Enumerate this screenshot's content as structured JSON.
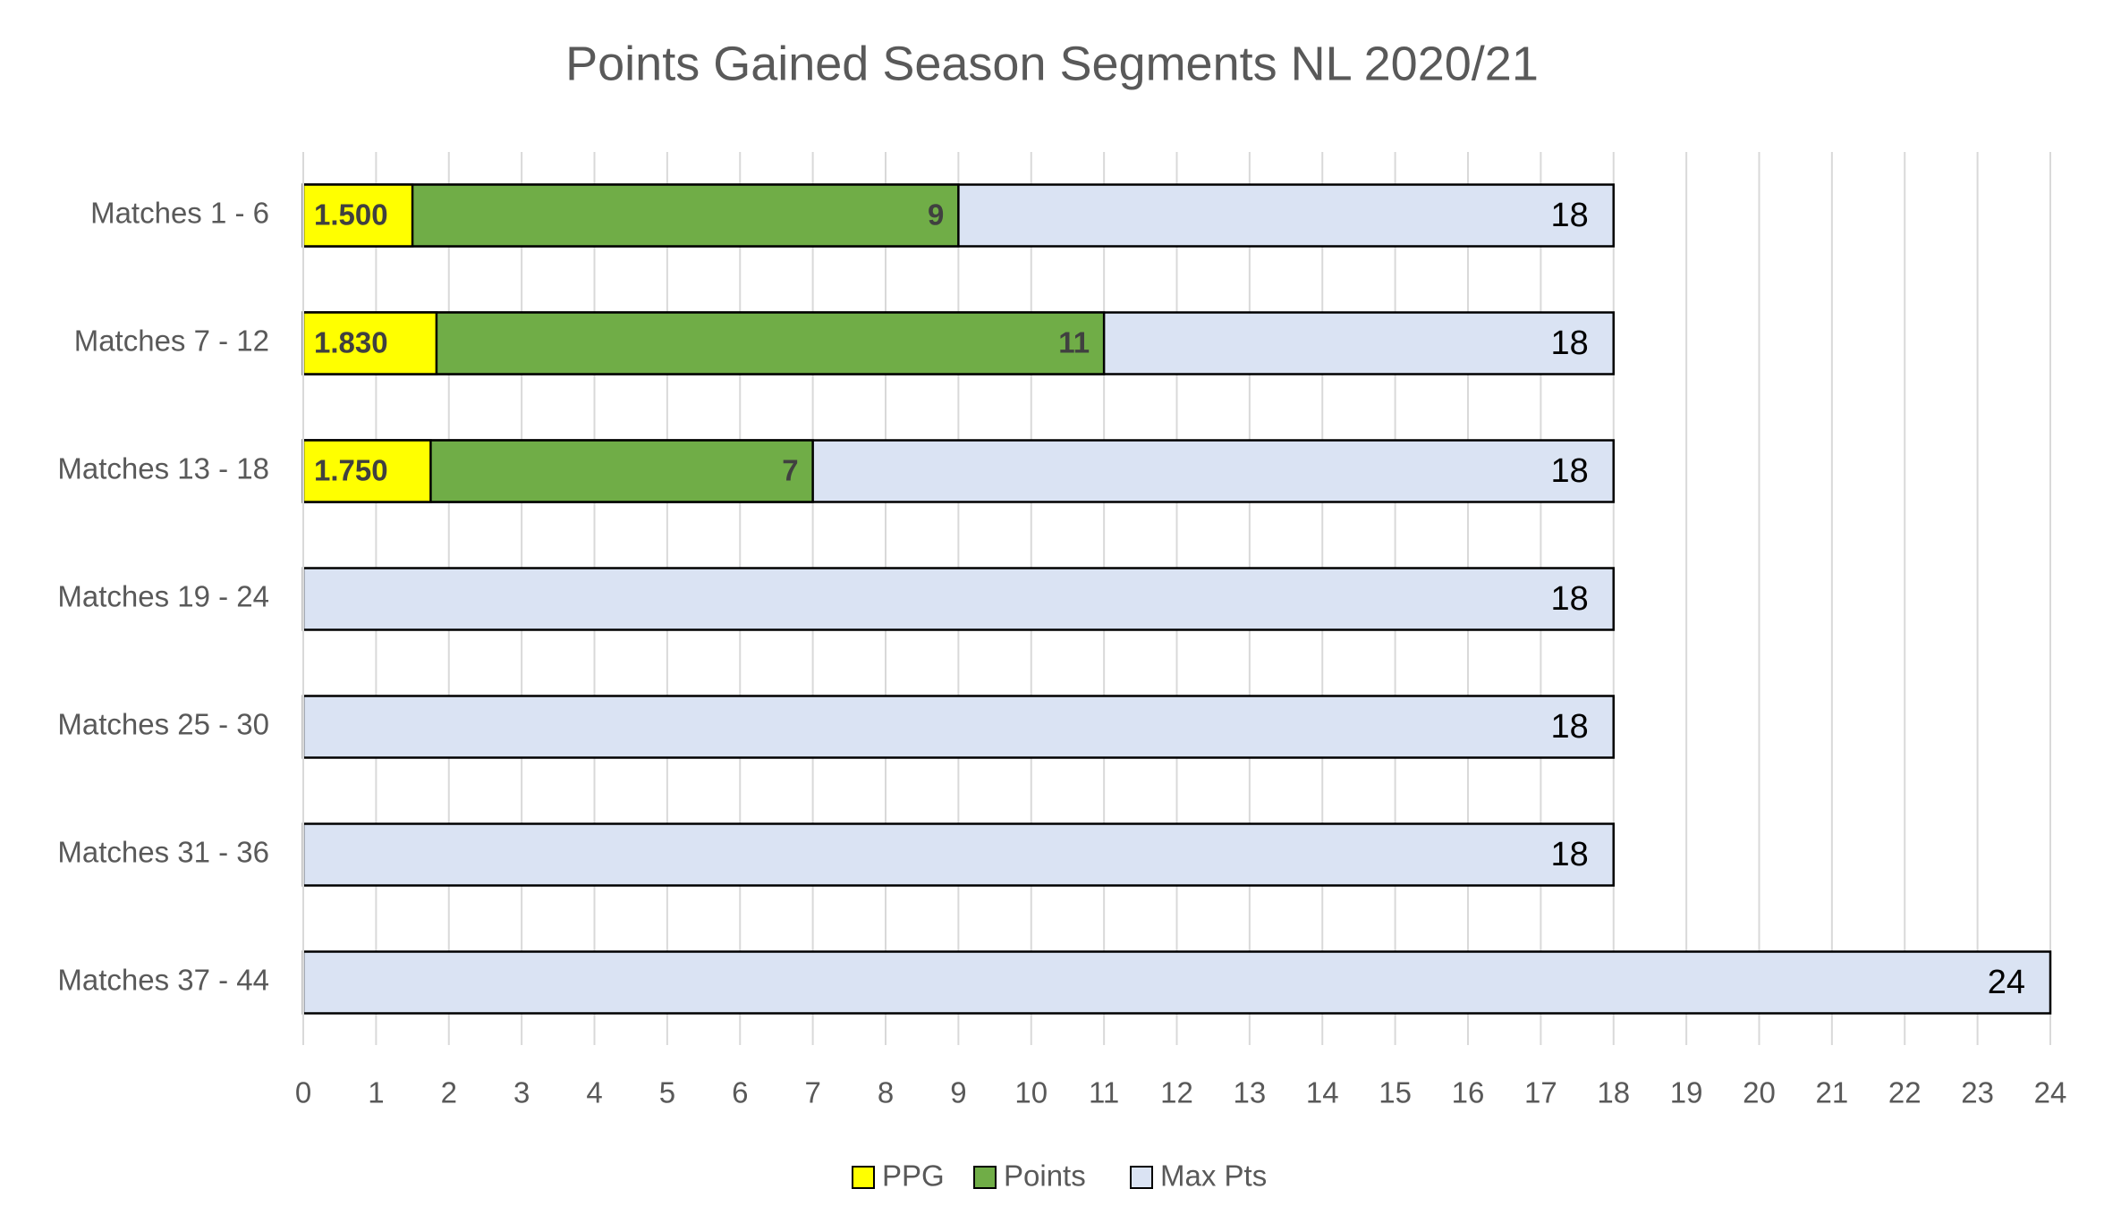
{
  "chart_data": {
    "type": "bar",
    "orientation": "horizontal",
    "overlap": true,
    "title": "Points Gained Season Segments NL 2020/21",
    "categories": [
      "Matches 1 - 6",
      "Matches 7 - 12",
      "Matches 13 - 18",
      "Matches 19 - 24",
      "Matches 25 - 30",
      "Matches 31 - 36",
      "Matches 37 - 44"
    ],
    "series": [
      {
        "name": "PPG",
        "color": "#ffff00",
        "values": [
          1.5,
          1.83,
          1.75,
          null,
          null,
          null,
          null
        ],
        "value_labels": [
          "1.500",
          "1.830",
          "1.750",
          null,
          null,
          null,
          null
        ]
      },
      {
        "name": "Points",
        "color": "#70ad47",
        "values": [
          9,
          11,
          7,
          null,
          null,
          null,
          null
        ]
      },
      {
        "name": "Max Pts",
        "color": "#dae3f3",
        "values": [
          18,
          18,
          18,
          18,
          18,
          18,
          24
        ]
      }
    ],
    "xlim": [
      0,
      24
    ],
    "xticks": [
      0,
      1,
      2,
      3,
      4,
      5,
      6,
      7,
      8,
      9,
      10,
      11,
      12,
      13,
      14,
      15,
      16,
      17,
      18,
      19,
      20,
      21,
      22,
      23,
      24
    ],
    "grid": true,
    "legend": "bottom"
  }
}
